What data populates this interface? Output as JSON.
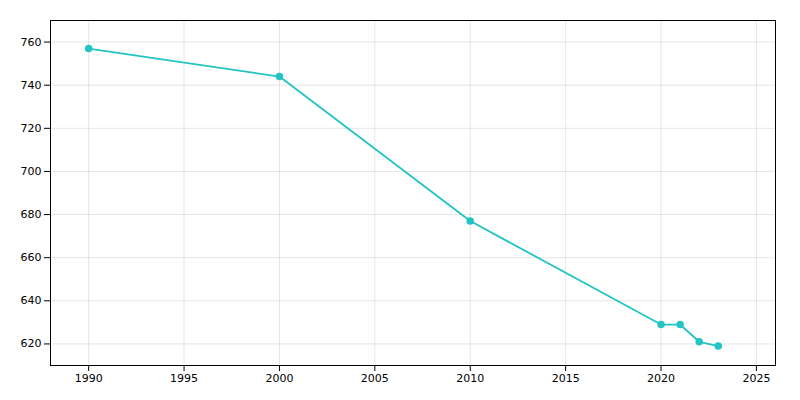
{
  "chart_data": {
    "type": "line",
    "x": [
      1990,
      2000,
      2010,
      2020,
      2021,
      2022,
      2023
    ],
    "values": [
      757,
      744,
      677,
      629,
      629,
      621,
      619
    ],
    "color": "#22c4c4",
    "marker": "circle",
    "xlim": [
      1988,
      2026
    ],
    "ylim": [
      610,
      770
    ],
    "xticks": [
      1990,
      1995,
      2000,
      2005,
      2010,
      2015,
      2020,
      2025
    ],
    "yticks": [
      620,
      640,
      660,
      680,
      700,
      720,
      740,
      760
    ],
    "grid": true
  }
}
